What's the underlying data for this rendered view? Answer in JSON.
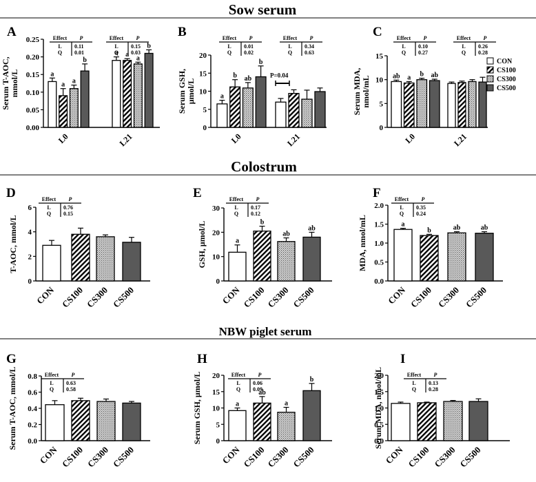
{
  "sections": {
    "sow": "Sow serum",
    "colostrum": "Colostrum",
    "piglet": "NBW piglet serum"
  },
  "legend": {
    "entries": [
      "CON",
      "CS100",
      "CS300",
      "CS500"
    ],
    "colors": {
      "CON": "#ffffff",
      "CS100": "hatch",
      "CS300": "dots",
      "CS500": "#595959"
    }
  },
  "chart_data": [
    {
      "panel": "A",
      "type": "bar",
      "grouped": true,
      "ylabel_lines": [
        "Serum T-AOC,",
        "mmol/L"
      ],
      "ylim": [
        0,
        0.25
      ],
      "ticks": [
        "0.00",
        "0.05",
        "0.10",
        "0.15",
        "0.20",
        "0.25"
      ],
      "categories": [
        "L0",
        "L21"
      ],
      "series": [
        {
          "name": "CON",
          "values": [
            0.13,
            0.19
          ],
          "errors": [
            0.01,
            0.01
          ],
          "letters": [
            "a",
            "a"
          ]
        },
        {
          "name": "CS100",
          "values": [
            0.09,
            0.19
          ],
          "errors": [
            0.02,
            0.005
          ],
          "letters": [
            "a",
            "a"
          ]
        },
        {
          "name": "CS300",
          "values": [
            0.11,
            0.18
          ],
          "errors": [
            0.01,
            0.005
          ],
          "letters": [
            "a",
            "a"
          ]
        },
        {
          "name": "CS500",
          "values": [
            0.16,
            0.21
          ],
          "errors": [
            0.02,
            0.01
          ],
          "letters": [
            "b",
            "b"
          ]
        }
      ],
      "effects": [
        {
          "header": [
            "Effect",
            "P"
          ],
          "rows": [
            [
              "L",
              "0.11"
            ],
            [
              "Q",
              "0.01"
            ]
          ]
        },
        {
          "header": [
            "Effect",
            "P"
          ],
          "rows": [
            [
              "L",
              "0.15"
            ],
            [
              "Q",
              "0.03"
            ]
          ]
        }
      ],
      "annotation": ""
    },
    {
      "panel": "B",
      "type": "bar",
      "grouped": true,
      "ylabel_lines": [
        "Serum GSH,",
        "μmol/L"
      ],
      "ylim": [
        0,
        20
      ],
      "ticks": [
        "0",
        "5",
        "10",
        "15",
        "20"
      ],
      "categories": [
        "L0",
        "L21"
      ],
      "series": [
        {
          "name": "CON",
          "values": [
            6.5,
            7.0
          ],
          "errors": [
            1.0,
            1.0
          ],
          "letters": [
            "a",
            ""
          ]
        },
        {
          "name": "CS100",
          "values": [
            11.2,
            9.4
          ],
          "errors": [
            2.0,
            1.0
          ],
          "letters": [
            "b",
            ""
          ]
        },
        {
          "name": "CS300",
          "values": [
            10.9,
            7.8
          ],
          "errors": [
            1.5,
            2.5
          ],
          "letters": [
            "ab",
            ""
          ]
        },
        {
          "name": "CS500",
          "values": [
            14.0,
            9.9
          ],
          "errors": [
            3.0,
            1.0
          ],
          "letters": [
            "b",
            ""
          ]
        }
      ],
      "effects": [
        {
          "header": [
            "Effect",
            "P"
          ],
          "rows": [
            [
              "L",
              "0.01"
            ],
            [
              "Q",
              "0.02"
            ]
          ]
        },
        {
          "header": [
            "Effect",
            "P"
          ],
          "rows": [
            [
              "L",
              "0.34"
            ],
            [
              "Q",
              "0.63"
            ]
          ]
        }
      ],
      "annotation": "P=0.04"
    },
    {
      "panel": "C",
      "type": "bar",
      "grouped": true,
      "ylabel_lines": [
        "Serum MDA,",
        "nmol/mL"
      ],
      "ylim": [
        0,
        15
      ],
      "ticks": [
        "0",
        "5",
        "10",
        "15"
      ],
      "categories": [
        "L0",
        "L21"
      ],
      "series": [
        {
          "name": "CON",
          "values": [
            9.6,
            9.2
          ],
          "errors": [
            0.3,
            0.3
          ],
          "letters": [
            "ab",
            ""
          ]
        },
        {
          "name": "CS100",
          "values": [
            9.3,
            9.4
          ],
          "errors": [
            0.3,
            0.3
          ],
          "letters": [
            "a",
            ""
          ]
        },
        {
          "name": "CS300",
          "values": [
            10.0,
            9.6
          ],
          "errors": [
            0.3,
            0.4
          ],
          "letters": [
            "b",
            ""
          ]
        },
        {
          "name": "CS500",
          "values": [
            9.8,
            9.5
          ],
          "errors": [
            0.3,
            1.0
          ],
          "letters": [
            "ab",
            ""
          ]
        }
      ],
      "effects": [
        {
          "header": [
            "Effect",
            "P"
          ],
          "rows": [
            [
              "L",
              "0.10"
            ],
            [
              "Q",
              "0.27"
            ]
          ]
        },
        {
          "header": [
            "Effect",
            "P"
          ],
          "rows": [
            [
              "L",
              "0.26"
            ],
            [
              "Q",
              "0.28"
            ]
          ]
        }
      ],
      "annotation": ""
    },
    {
      "panel": "D",
      "type": "bar",
      "grouped": false,
      "ylabel_lines": [
        "T-AOC, mmol/L"
      ],
      "ylim": [
        0,
        6
      ],
      "ticks": [
        "0",
        "2",
        "4",
        "6"
      ],
      "categories": [
        "CON",
        "CS100",
        "CS300",
        "CS500"
      ],
      "values": [
        2.9,
        3.8,
        3.6,
        3.15
      ],
      "errors": [
        0.4,
        0.5,
        0.15,
        0.4
      ],
      "letters": [
        "",
        "",
        "",
        ""
      ],
      "effects": [
        {
          "header": [
            "Effect",
            "P"
          ],
          "rows": [
            [
              "L",
              "0.76"
            ],
            [
              "Q",
              "0.15"
            ]
          ]
        }
      ]
    },
    {
      "panel": "E",
      "type": "bar",
      "grouped": false,
      "ylabel_lines": [
        "GSH, μmol/L"
      ],
      "ylim": [
        0,
        30
      ],
      "ticks": [
        "0",
        "10",
        "20",
        "30"
      ],
      "categories": [
        "CON",
        "CS100",
        "CS300",
        "CS500"
      ],
      "values": [
        11.8,
        20.5,
        16.2,
        18.0
      ],
      "errors": [
        3.0,
        2.0,
        1.5,
        2.0
      ],
      "letters": [
        "a",
        "b",
        "ab",
        "ab"
      ],
      "effects": [
        {
          "header": [
            "Effect",
            "P"
          ],
          "rows": [
            [
              "L",
              "0.17"
            ],
            [
              "Q",
              "0.12"
            ]
          ]
        }
      ]
    },
    {
      "panel": "F",
      "type": "bar",
      "grouped": false,
      "ylabel_lines": [
        "MDA, nmol/mL"
      ],
      "ylim": [
        0,
        2.0
      ],
      "ticks": [
        "0.0",
        "0.5",
        "1.0",
        "1.5",
        "2.0"
      ],
      "categories": [
        "CON",
        "CS100",
        "CS300",
        "CS500"
      ],
      "values": [
        1.36,
        1.2,
        1.27,
        1.26
      ],
      "errors": [
        0.03,
        0.03,
        0.03,
        0.04
      ],
      "letters": [
        "a",
        "b",
        "ab",
        "ab"
      ],
      "effects": [
        {
          "header": [
            "Effect",
            "P"
          ],
          "rows": [
            [
              "L",
              "0.35"
            ],
            [
              "Q",
              "0.24"
            ]
          ]
        }
      ]
    },
    {
      "panel": "G",
      "type": "bar",
      "grouped": false,
      "ylabel_lines": [
        "Serum T-AOC, mmol/L"
      ],
      "ylim": [
        0,
        0.8
      ],
      "ticks": [
        "0.0",
        "0.2",
        "0.4",
        "0.6",
        "0.8"
      ],
      "categories": [
        "CON",
        "CS100",
        "CS300",
        "CS500"
      ],
      "values": [
        0.445,
        0.495,
        0.485,
        0.465
      ],
      "errors": [
        0.05,
        0.03,
        0.03,
        0.02
      ],
      "letters": [
        "",
        "",
        "",
        ""
      ],
      "effects": [
        {
          "header": [
            "Effect",
            "P"
          ],
          "rows": [
            [
              "L",
              "0.63"
            ],
            [
              "Q",
              "0.58"
            ]
          ]
        }
      ]
    },
    {
      "panel": "H",
      "type": "bar",
      "grouped": false,
      "ylabel_lines": [
        "Serum GSH, μmol/L"
      ],
      "ylim": [
        0,
        20
      ],
      "ticks": [
        "0",
        "5",
        "10",
        "15",
        "20"
      ],
      "categories": [
        "CON",
        "CS100",
        "CS300",
        "CS500"
      ],
      "values": [
        9.2,
        11.5,
        8.7,
        15.3
      ],
      "errors": [
        0.8,
        2.0,
        1.5,
        2.2
      ],
      "letters": [
        "a",
        "ab",
        "a",
        "b"
      ],
      "effects": [
        {
          "header": [
            "Effect",
            "P"
          ],
          "rows": [
            [
              "L",
              "0.06"
            ],
            [
              "Q",
              "0.09"
            ]
          ]
        }
      ]
    },
    {
      "panel": "I",
      "type": "bar",
      "grouped": false,
      "ylabel_lines": [
        "Serum MDA, nmol/mL"
      ],
      "ylim": [
        0,
        2.0
      ],
      "ticks": [
        "0.0",
        "0.5",
        "1.0",
        "1.5",
        "2.0"
      ],
      "categories": [
        "CON",
        "CS100",
        "CS300",
        "CS500"
      ],
      "values": [
        1.14,
        1.16,
        1.2,
        1.2
      ],
      "errors": [
        0.04,
        0.02,
        0.03,
        0.08
      ],
      "letters": [
        "",
        "",
        "",
        ""
      ],
      "effects": [
        {
          "header": [
            "Effect",
            "P"
          ],
          "rows": [
            [
              "L",
              "0.13"
            ],
            [
              "Q",
              "0.28"
            ]
          ]
        }
      ]
    }
  ]
}
